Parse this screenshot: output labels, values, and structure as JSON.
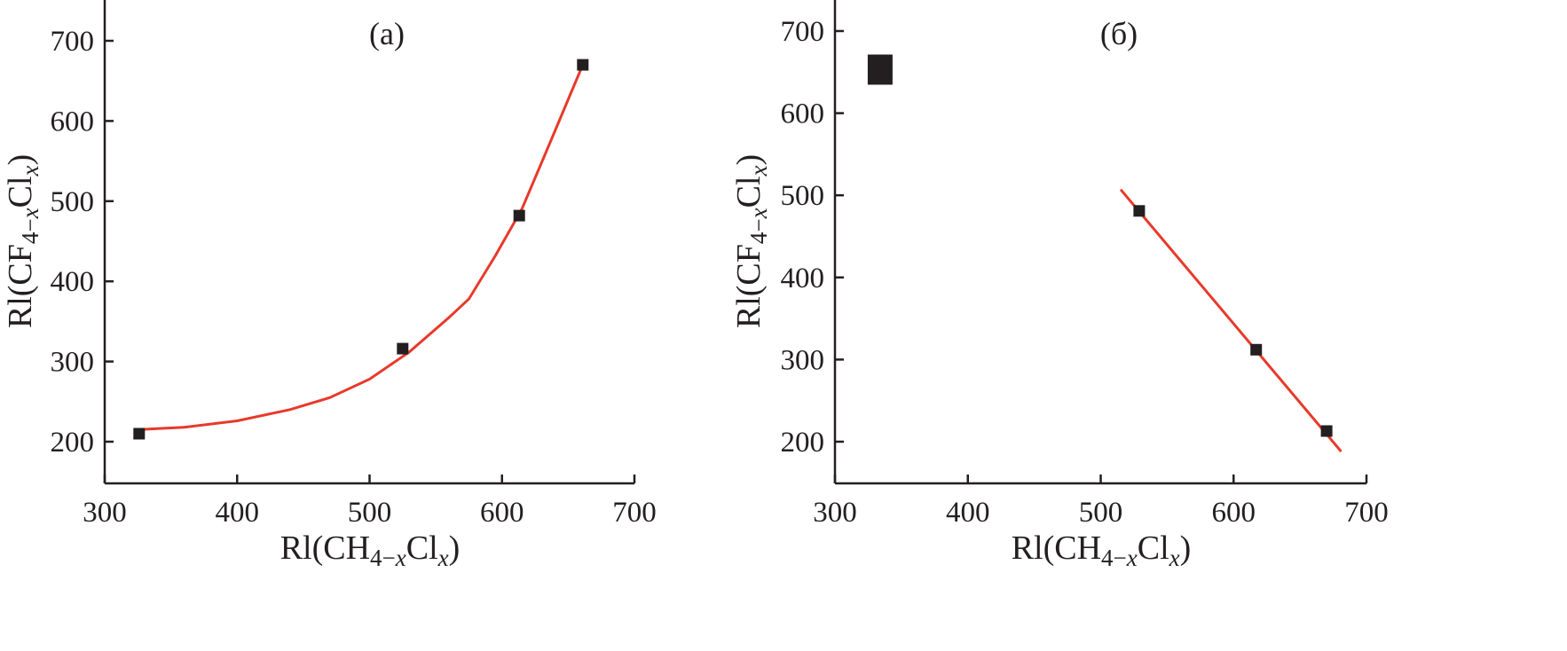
{
  "chart_data": [
    {
      "type": "scatter",
      "panel_label": "(а)",
      "xlabel": {
        "base": "Rl(CH",
        "sub1": "4−",
        "sub1_x": "x",
        "mid": "Cl",
        "sub2_x": "x",
        "end": ")"
      },
      "ylabel": {
        "base": "Rl(CF",
        "sub1": "4−",
        "sub1_x": "x",
        "mid": "Cl",
        "sub2_x": "x",
        "end": ")"
      },
      "xlim": [
        300,
        700
      ],
      "ylim": [
        150,
        750
      ],
      "xticks": [
        300,
        400,
        500,
        600,
        700
      ],
      "yticks": [
        200,
        300,
        400,
        500,
        600,
        700
      ],
      "series": [
        {
          "x": [
            326,
            525,
            613,
            661
          ],
          "y": [
            210,
            316,
            482,
            670
          ]
        }
      ],
      "fit": {
        "color": "#e8392a",
        "x": [
          325,
          360,
          400,
          440,
          470,
          500,
          530,
          560,
          575,
          595,
          615,
          635,
          661
        ],
        "y": [
          215,
          218,
          226,
          240,
          255,
          278,
          312,
          355,
          378,
          432,
          490,
          568,
          670
        ]
      },
      "grid": false
    },
    {
      "type": "scatter",
      "panel_label": "(б)",
      "xlabel": {
        "base": "Rl(CH",
        "sub1": "4−",
        "sub1_x": "x",
        "mid": "Cl",
        "sub2_x": "x",
        "end": ")"
      },
      "ylabel": {
        "base": "Rl(CF",
        "sub1": "4−",
        "sub1_x": "x",
        "mid": "Cl",
        "sub2_x": "x",
        "end": ")"
      },
      "xlim": [
        300,
        700
      ],
      "ylim": [
        150,
        750
      ],
      "xticks": [
        300,
        400,
        500,
        600,
        700
      ],
      "yticks": [
        200,
        300,
        400,
        500,
        600,
        700
      ],
      "series": [
        {
          "x": [
            334,
            529,
            617,
            670
          ],
          "y": [
            653,
            481,
            312,
            213
          ],
          "large": [
            true,
            false,
            false,
            false
          ]
        }
      ],
      "fit": {
        "color": "#e8392a",
        "x": [
          515,
          681
        ],
        "y": [
          507,
          188
        ]
      },
      "grid": false
    }
  ]
}
